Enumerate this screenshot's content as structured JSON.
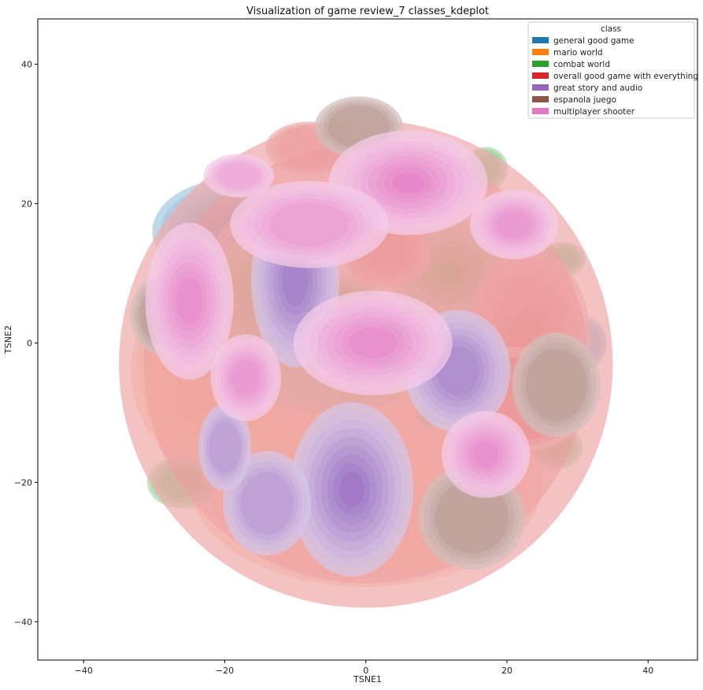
{
  "chart_data": {
    "type": "kde",
    "title": "Visualization of game review_7 classes_kdeplot",
    "xlabel": "TSNE1",
    "ylabel": "TSNE2",
    "xlim": [
      -46.5,
      47
    ],
    "ylim": [
      -45.5,
      46.5
    ],
    "xticks": [
      -40,
      -20,
      0,
      20,
      40
    ],
    "yticks": [
      -40,
      -20,
      0,
      20,
      40
    ],
    "grid": false,
    "legend": {
      "title": "class",
      "placement": "top-right"
    },
    "series": [
      {
        "name": "general good game",
        "color": "#1f77b4",
        "blobs": [
          {
            "x": -19,
            "y": 16,
            "rx": 9,
            "ry": 6,
            "peak": 0.9
          },
          {
            "x": -14,
            "y": 13,
            "rx": 6,
            "ry": 5,
            "peak": 0.7
          },
          {
            "x": -4,
            "y": -9,
            "rx": 2.2,
            "ry": 4,
            "peak": 0.95
          },
          {
            "x": -15,
            "y": -10.5,
            "rx": 1.5,
            "ry": 2,
            "peak": 0.9
          },
          {
            "x": 31,
            "y": 0,
            "rx": 2.5,
            "ry": 3,
            "peak": 0.4
          },
          {
            "x": -30,
            "y": -2,
            "rx": 2,
            "ry": 2.5,
            "peak": 0.35
          }
        ]
      },
      {
        "name": "mario world",
        "color": "#ff7f0e",
        "blobs": [
          {
            "x": -24,
            "y": -7,
            "rx": 6,
            "ry": 9,
            "peak": 0.95
          },
          {
            "x": -11,
            "y": -18,
            "rx": 6,
            "ry": 5,
            "peak": 0.8
          },
          {
            "x": 6,
            "y": -25,
            "rx": 8,
            "ry": 6,
            "peak": 0.9
          },
          {
            "x": -22,
            "y": -4,
            "rx": 9,
            "ry": 11,
            "peak": 0.3
          },
          {
            "x": 0,
            "y": -20,
            "rx": 20,
            "ry": 12,
            "peak": 0.2
          }
        ]
      },
      {
        "name": "combat world",
        "color": "#2ca02c",
        "blobs": [
          {
            "x": -14,
            "y": 7,
            "rx": 7,
            "ry": 7,
            "peak": 0.95
          },
          {
            "x": 12,
            "y": 10,
            "rx": 7,
            "ry": 6,
            "peak": 0.95
          },
          {
            "x": -3,
            "y": 6,
            "rx": 4,
            "ry": 3,
            "peak": 0.9
          },
          {
            "x": -26,
            "y": -20,
            "rx": 4,
            "ry": 3,
            "peak": 0.6
          },
          {
            "x": 27,
            "y": -15,
            "rx": 3,
            "ry": 2.5,
            "peak": 0.55
          },
          {
            "x": 28,
            "y": 12,
            "rx": 2.5,
            "ry": 2,
            "peak": 0.5
          },
          {
            "x": 9,
            "y": -10,
            "rx": 1.6,
            "ry": 1.8,
            "peak": 0.9
          },
          {
            "x": 17,
            "y": 25,
            "rx": 2.5,
            "ry": 2.5,
            "peak": 0.55
          },
          {
            "x": -5,
            "y": -4,
            "rx": 10,
            "ry": 5,
            "peak": 0.35
          }
        ]
      },
      {
        "name": "overall good game with everything",
        "color": "#d62728",
        "blobs": [
          {
            "x": 23,
            "y": 1,
            "rx": 7,
            "ry": 10,
            "peak": 0.95
          },
          {
            "x": 3,
            "y": 13,
            "rx": 5,
            "ry": 4,
            "peak": 0.8
          },
          {
            "x": -8,
            "y": 28,
            "rx": 5,
            "ry": 3,
            "peak": 0.4
          },
          {
            "x": 0,
            "y": -3,
            "rx": 28,
            "ry": 28,
            "peak": 0.22
          },
          {
            "x": 22,
            "y": -8,
            "rx": 8,
            "ry": 6,
            "peak": 0.3
          }
        ]
      },
      {
        "name": "great story and audio",
        "color": "#9467bd",
        "blobs": [
          {
            "x": -10,
            "y": 9,
            "rx": 5,
            "ry": 10,
            "peak": 0.9
          },
          {
            "x": -2,
            "y": -21,
            "rx": 7,
            "ry": 10,
            "peak": 0.95
          },
          {
            "x": 13,
            "y": -4,
            "rx": 6,
            "ry": 7,
            "peak": 0.75
          },
          {
            "x": -14,
            "y": -23,
            "rx": 5,
            "ry": 6,
            "peak": 0.55
          },
          {
            "x": -20,
            "y": -15,
            "rx": 3,
            "ry": 5,
            "peak": 0.5
          }
        ]
      },
      {
        "name": "espanola juego",
        "color": "#8c564b",
        "blobs": [
          {
            "x": -1,
            "y": 31,
            "rx": 5,
            "ry": 3.5,
            "peak": 0.45
          },
          {
            "x": 27,
            "y": -6,
            "rx": 5,
            "ry": 6,
            "peak": 0.45
          },
          {
            "x": 15,
            "y": -25,
            "rx": 6,
            "ry": 6,
            "peak": 0.45
          },
          {
            "x": -29,
            "y": 4,
            "rx": 3.5,
            "ry": 4.5,
            "peak": 0.45
          }
        ]
      },
      {
        "name": "multiplayer shooter",
        "color": "#e377c2",
        "blobs": [
          {
            "x": 6,
            "y": 23,
            "rx": 9,
            "ry": 6,
            "peak": 0.95
          },
          {
            "x": -8,
            "y": 17,
            "rx": 9,
            "ry": 5,
            "peak": 0.7
          },
          {
            "x": 1,
            "y": 0,
            "rx": 9,
            "ry": 6,
            "peak": 0.9
          },
          {
            "x": -25,
            "y": 6,
            "rx": 5,
            "ry": 9,
            "peak": 0.9
          },
          {
            "x": -17,
            "y": -5,
            "rx": 4,
            "ry": 5,
            "peak": 0.75
          },
          {
            "x": 17,
            "y": -16,
            "rx": 5,
            "ry": 5,
            "peak": 0.9
          },
          {
            "x": 21,
            "y": 17,
            "rx": 5,
            "ry": 4,
            "peak": 0.75
          },
          {
            "x": -18,
            "y": 24,
            "rx": 4,
            "ry": 2.5,
            "peak": 0.5
          }
        ]
      }
    ]
  }
}
